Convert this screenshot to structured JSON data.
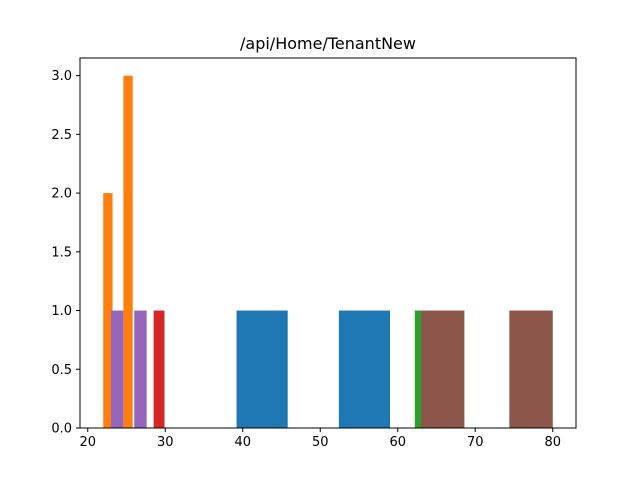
{
  "chart_data": {
    "type": "bar",
    "title": "/api/Home/TenantNew",
    "xlabel": "",
    "ylabel": "",
    "xlim": [
      19,
      83
    ],
    "ylim": [
      0,
      3.15
    ],
    "x_ticks": [
      20,
      30,
      40,
      50,
      60,
      70,
      80
    ],
    "y_ticks": [
      0.0,
      0.5,
      1.0,
      1.5,
      2.0,
      2.5,
      3.0
    ],
    "x_tick_labels": [
      "20",
      "30",
      "40",
      "50",
      "60",
      "70",
      "80"
    ],
    "y_tick_labels": [
      "0.0",
      "0.5",
      "1.0",
      "1.5",
      "2.0",
      "2.5",
      "3.0"
    ],
    "grid": false,
    "legend": "none",
    "series": [
      {
        "color": "#1f77b4",
        "bars": [
          {
            "x0": 39.2,
            "x1": 45.8,
            "value": 1
          },
          {
            "x0": 52.4,
            "x1": 59.0,
            "value": 1
          }
        ]
      },
      {
        "color": "#ff7f0e",
        "bars": [
          {
            "x0": 22.0,
            "x1": 23.2,
            "value": 2
          },
          {
            "x0": 24.6,
            "x1": 25.8,
            "value": 3
          }
        ]
      },
      {
        "color": "#2ca02c",
        "bars": [
          {
            "x0": 62.2,
            "x1": 63.0,
            "value": 1
          }
        ]
      },
      {
        "color": "#d62728",
        "bars": [
          {
            "x0": 28.5,
            "x1": 29.9,
            "value": 1
          }
        ]
      },
      {
        "color": "#9467bd",
        "bars": [
          {
            "x0": 23.0,
            "x1": 24.6,
            "value": 1
          },
          {
            "x0": 26.0,
            "x1": 27.6,
            "value": 1
          }
        ]
      },
      {
        "color": "#8c564b",
        "bars": [
          {
            "x0": 63.0,
            "x1": 68.6,
            "value": 1
          },
          {
            "x0": 74.4,
            "x1": 80.0,
            "value": 1
          }
        ]
      }
    ]
  }
}
